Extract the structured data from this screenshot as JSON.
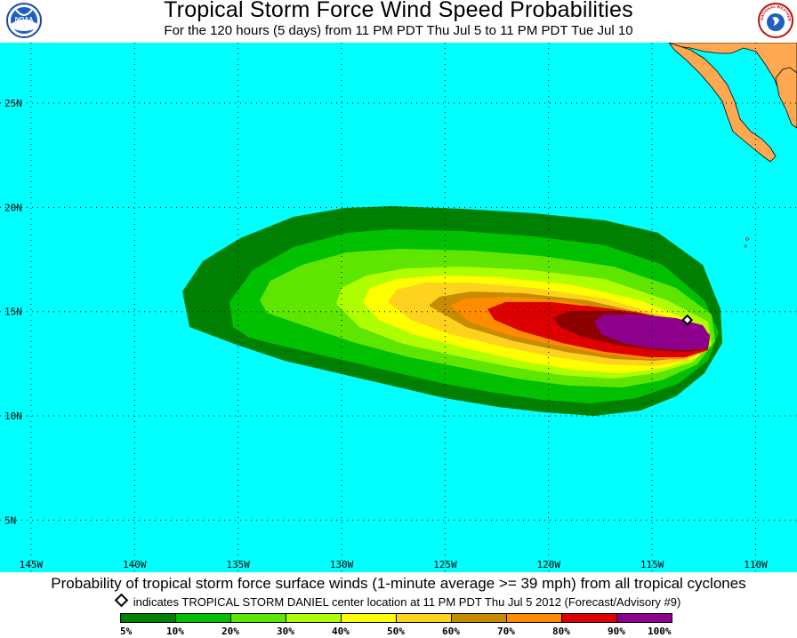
{
  "header": {
    "title": "Tropical Storm Force Wind Speed Probabilities",
    "subtitle": "For the 120 hours (5 days) from 11 PM PDT Thu Jul 5 to 11 PM PDT Tue Jul 10",
    "left_logo": {
      "icon": "noaa-logo-icon",
      "text": "NOAA"
    },
    "right_logo": {
      "icon": "national-weather-service-logo-icon",
      "text": "NATIONAL WEATHER SERVICE"
    }
  },
  "map": {
    "ocean_color": "#00ffff",
    "land_color": "#ffa852",
    "lon_range": [
      -146.5,
      -108.0
    ],
    "lat_range": [
      2.5,
      27.9
    ],
    "lon_labels": [
      "145W",
      "140W",
      "135W",
      "130W",
      "125W",
      "120W",
      "115W",
      "110W"
    ],
    "lon_values": [
      -145,
      -140,
      -135,
      -130,
      -125,
      -120,
      -115,
      -110
    ],
    "lat_labels": [
      "25N",
      "20N",
      "15N",
      "10N",
      "5N"
    ],
    "lat_values": [
      25,
      20,
      15,
      10,
      5
    ],
    "storm_center": {
      "name": "TROPICAL STORM DANIEL",
      "lon": -113.3,
      "lat": 14.6
    }
  },
  "footer": {
    "caption": "Probability of tropical storm force surface winds (1-minute average >= 39 mph) from all tropical cyclones",
    "indicator_text": "indicates TROPICAL STORM DANIEL center location at 11 PM PDT Thu Jul 5 2012 (Forecast/Advisory #9)"
  },
  "legend": {
    "labels": [
      "5%",
      "10%",
      "20%",
      "30%",
      "40%",
      "50%",
      "60%",
      "70%",
      "80%",
      "90%",
      "100%"
    ],
    "colors": [
      "#008000",
      "#00c000",
      "#5ee600",
      "#b0ff00",
      "#ffff00",
      "#ffd21e",
      "#c88c00",
      "#ff8c00",
      "#dc0000",
      "#8c0000",
      "#8c008c"
    ]
  }
}
